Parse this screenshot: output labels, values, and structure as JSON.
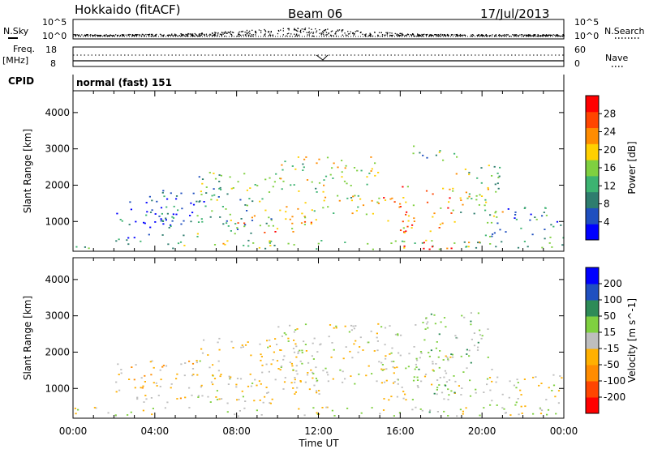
{
  "header": {
    "site": "Hokkaido (fitACF)",
    "beam": "Beam 06",
    "date": "17/Jul/2013"
  },
  "noise_panel": {
    "left_label": "N.Sky",
    "right_label": "N.Search",
    "left_ticks": [
      "10^5",
      "10^0"
    ],
    "right_ticks": [
      "10^5",
      "10^0"
    ]
  },
  "freq_panel": {
    "left_label_1": "Freq.",
    "left_label_2": "[MHz]",
    "left_ticks": [
      "18",
      "8"
    ],
    "right_label": "Nave",
    "right_ticks": [
      "60",
      "0"
    ]
  },
  "cpid": {
    "label": "CPID",
    "value": "normal (fast) 151"
  },
  "x_axis": {
    "label": "Time UT",
    "ticks": [
      "00:00",
      "04:00",
      "08:00",
      "12:00",
      "16:00",
      "20:00",
      "00:00"
    ]
  },
  "chart_data": [
    {
      "type": "heatmap",
      "name": "power",
      "xlabel": "Time UT",
      "ylabel": "Slant Range [km]",
      "x_ticks": [
        "00:00",
        "04:00",
        "08:00",
        "12:00",
        "16:00",
        "20:00",
        "00:00"
      ],
      "y_ticks": [
        "1000",
        "2000",
        "3000",
        "4000"
      ],
      "xlim": [
        0,
        24
      ],
      "ylim": [
        180,
        4600
      ],
      "colorbar": {
        "label": "Power [dB]",
        "ticks": [
          "4",
          "8",
          "12",
          "16",
          "20",
          "24",
          "28"
        ],
        "range": [
          0,
          32
        ],
        "colors": [
          "#0000ff",
          "#1f4fbf",
          "#2e7d6e",
          "#3cb371",
          "#7fd040",
          "#ffd000",
          "#ff8c00",
          "#ff4500",
          "#ff0000"
        ]
      },
      "regions": [
        {
          "t0": 0.0,
          "t1": 24.0,
          "r0": 250,
          "r1": 500,
          "level": 0.45
        },
        {
          "t0": 2.0,
          "t1": 5.5,
          "r0": 500,
          "r1": 1600,
          "level": 0.2
        },
        {
          "t0": 3.5,
          "t1": 6.5,
          "r0": 1000,
          "r1": 1900,
          "level": 0.15
        },
        {
          "t0": 6.0,
          "t1": 10.0,
          "r0": 600,
          "r1": 2400,
          "level": 0.4
        },
        {
          "t0": 8.0,
          "t1": 12.0,
          "r0": 700,
          "r1": 1200,
          "level": 0.7
        },
        {
          "t0": 10.0,
          "t1": 15.0,
          "r0": 1100,
          "r1": 2800,
          "level": 0.55
        },
        {
          "t0": 15.0,
          "t1": 18.5,
          "r0": 700,
          "r1": 2000,
          "level": 0.75
        },
        {
          "t0": 16.0,
          "t1": 20.0,
          "r0": 250,
          "r1": 450,
          "level": 0.9
        },
        {
          "t0": 16.5,
          "t1": 19.0,
          "r0": 2700,
          "r1": 3100,
          "level": 0.4
        },
        {
          "t0": 18.5,
          "t1": 21.0,
          "r0": 800,
          "r1": 2600,
          "level": 0.5
        },
        {
          "t0": 20.0,
          "t1": 24.0,
          "r0": 500,
          "r1": 1400,
          "level": 0.3
        }
      ]
    },
    {
      "type": "heatmap",
      "name": "velocity",
      "xlabel": "Time UT",
      "ylabel": "Slant Range [km]",
      "x_ticks": [
        "00:00",
        "04:00",
        "08:00",
        "12:00",
        "16:00",
        "20:00",
        "00:00"
      ],
      "y_ticks": [
        "1000",
        "2000",
        "3000",
        "4000"
      ],
      "xlim": [
        0,
        24
      ],
      "ylim": [
        180,
        4600
      ],
      "colorbar": {
        "label": "Velocity [m s^-1]",
        "ticks": [
          "200",
          "100",
          "50",
          "15",
          "-15",
          "-50",
          "-100",
          "-200"
        ],
        "range": [
          -250,
          250
        ],
        "colors": [
          "#ff0000",
          "#ff4500",
          "#ff8c00",
          "#ffb000",
          "#bebebe",
          "#7fd040",
          "#2e8b57",
          "#2050c0",
          "#0000ff"
        ]
      },
      "regions": [
        {
          "t0": 0.0,
          "t1": 24.0,
          "r0": 250,
          "r1": 500,
          "v": 0
        },
        {
          "t0": 2.0,
          "t1": 6.0,
          "r0": 600,
          "r1": 1800,
          "v": -40
        },
        {
          "t0": 6.0,
          "t1": 12.0,
          "r0": 600,
          "r1": 2400,
          "v": -20
        },
        {
          "t0": 10.0,
          "t1": 16.0,
          "r0": 1100,
          "r1": 2800,
          "v": 0
        },
        {
          "t0": 15.0,
          "t1": 19.0,
          "r0": 700,
          "r1": 2000,
          "v": 0
        },
        {
          "t0": 16.0,
          "t1": 18.5,
          "r0": 250,
          "r1": 450,
          "v": 40
        },
        {
          "t0": 16.5,
          "t1": 20.5,
          "r0": 800,
          "r1": 3100,
          "v": 40
        },
        {
          "t0": 20.0,
          "t1": 24.0,
          "r0": 500,
          "r1": 1400,
          "v": -10
        }
      ]
    }
  ],
  "colors": {
    "axis": "#000000",
    "background": "#ffffff"
  }
}
